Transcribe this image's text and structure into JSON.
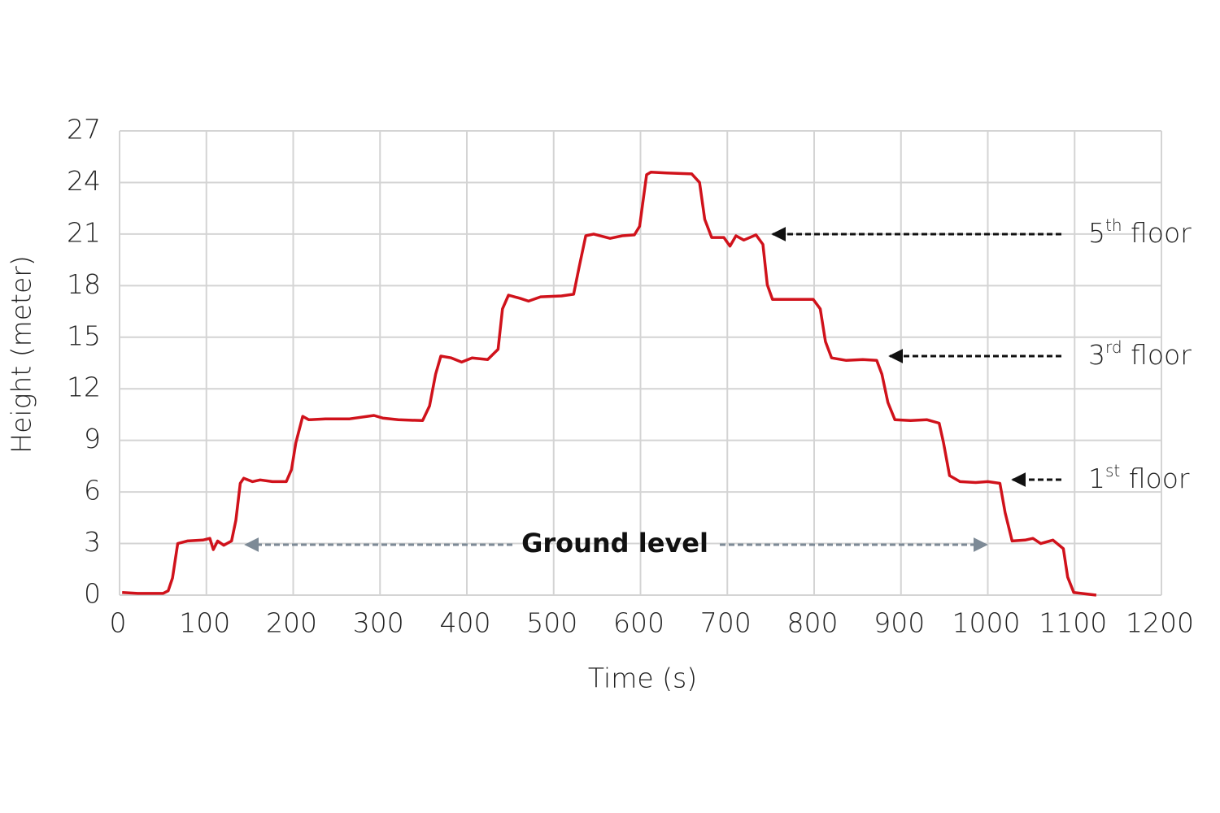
{
  "chart_data": {
    "type": "line",
    "x_label": "Time (s)",
    "y_label": "Height (meter)",
    "x": [
      3,
      21,
      50,
      56,
      61,
      67,
      78,
      96,
      104,
      108,
      113,
      120,
      129,
      134,
      139,
      143,
      153,
      162,
      176,
      192,
      198,
      203,
      211,
      218,
      237,
      265,
      293,
      303,
      321,
      349,
      357,
      364,
      370,
      382,
      394,
      406,
      424,
      436,
      441,
      448,
      462,
      471,
      485,
      509,
      523,
      529,
      537,
      546,
      565,
      579,
      593,
      599,
      607,
      612,
      630,
      659,
      668,
      674,
      682,
      696,
      703,
      710,
      719,
      733,
      741,
      746,
      752,
      771,
      799,
      807,
      813,
      820,
      837,
      856,
      872,
      878,
      885,
      893,
      911,
      930,
      944,
      949,
      956,
      968,
      986,
      1000,
      1014,
      1020,
      1028,
      1043,
      1052,
      1061,
      1075,
      1087,
      1092,
      1099,
      1125
    ],
    "series": [
      {
        "color": "#d0121b",
        "values": [
          0.15,
          0.1,
          0.1,
          0.25,
          1.0,
          3.0,
          3.15,
          3.2,
          3.3,
          2.65,
          3.15,
          2.9,
          3.15,
          4.35,
          6.5,
          6.8,
          6.6,
          6.7,
          6.6,
          6.6,
          7.3,
          8.85,
          10.4,
          10.2,
          10.25,
          10.25,
          10.45,
          10.3,
          10.2,
          10.15,
          11.0,
          12.85,
          13.9,
          13.8,
          13.55,
          13.8,
          13.7,
          14.3,
          16.65,
          17.45,
          17.25,
          17.1,
          17.35,
          17.4,
          17.5,
          19.0,
          20.9,
          21.0,
          20.75,
          20.9,
          20.95,
          21.45,
          24.45,
          24.6,
          24.55,
          24.5,
          24.0,
          21.85,
          20.8,
          20.8,
          20.3,
          20.9,
          20.65,
          20.95,
          20.4,
          18.05,
          17.2,
          17.2,
          17.2,
          16.65,
          14.75,
          13.8,
          13.65,
          13.7,
          13.65,
          12.85,
          11.2,
          10.2,
          10.15,
          10.2,
          10.0,
          8.85,
          6.95,
          6.6,
          6.55,
          6.6,
          6.5,
          4.8,
          3.15,
          3.2,
          3.3,
          3.0,
          3.2,
          2.7,
          1.05,
          0.15,
          0.0
        ]
      }
    ],
    "xlim": [
      0,
      1200
    ],
    "xticks": [
      0,
      100,
      200,
      300,
      400,
      500,
      600,
      700,
      800,
      900,
      1000,
      1100,
      1200
    ],
    "ylim": [
      0,
      27
    ],
    "yticks": [
      0,
      3,
      6,
      9,
      12,
      15,
      18,
      21,
      24,
      27
    ],
    "grid": true,
    "annotations": [
      {
        "text": "Ground level"
      },
      {
        "base": "5",
        "sup": "th",
        "text": " floor"
      },
      {
        "base": "3",
        "sup": "rd",
        "text": " floor"
      },
      {
        "base": "1",
        "sup": "st",
        "text": " floor"
      }
    ]
  }
}
